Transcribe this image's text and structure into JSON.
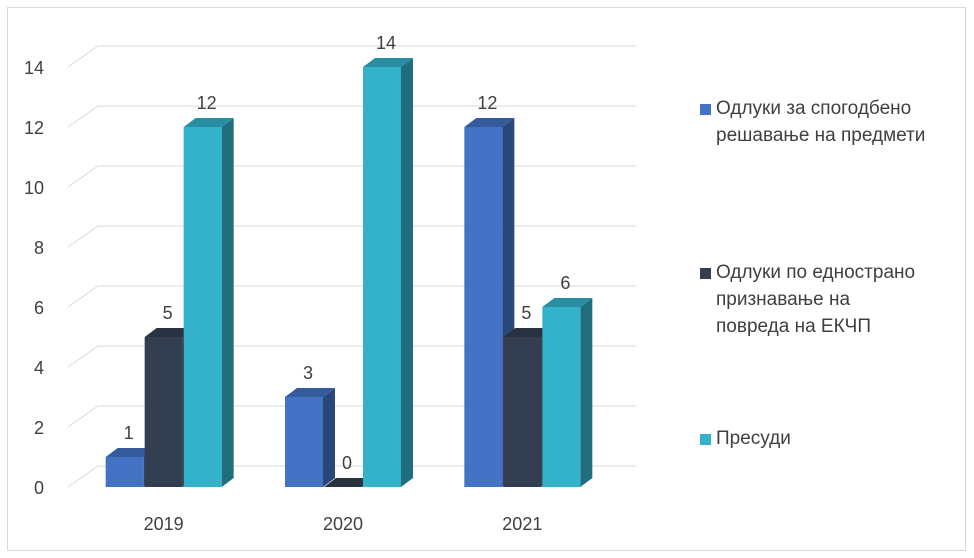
{
  "chart_data": {
    "type": "bar",
    "categories": [
      "2019",
      "2020",
      "2021"
    ],
    "series": [
      {
        "name": "Одлуки за спогодбено решавање на предмети",
        "values": [
          1,
          3,
          12
        ],
        "color": "#4472c4"
      },
      {
        "name": "Одлуки по едностранo признавање на повреда на ЕКЧП",
        "values": [
          5,
          0,
          5
        ],
        "color": "#333f50"
      },
      {
        "name": "Пресуди",
        "values": [
          12,
          14,
          6
        ],
        "color": "#33b2c9"
      }
    ],
    "y_ticks": [
      "0",
      "2",
      "4",
      "6",
      "8",
      "10",
      "12",
      "14"
    ],
    "ylim": [
      0,
      14
    ],
    "grid": true,
    "style": "3d-clustered-column",
    "legend_position": "right"
  },
  "legend": {
    "items": [
      {
        "label": "Одлуки за спогодбено\nрешавање на предмети",
        "color": "#4472c4"
      },
      {
        "label": "Одлуки по едностранo\nпризнавање на\nповреда на ЕКЧП",
        "color": "#333f50"
      },
      {
        "label": "Пресуди",
        "color": "#33b2c9"
      }
    ]
  }
}
